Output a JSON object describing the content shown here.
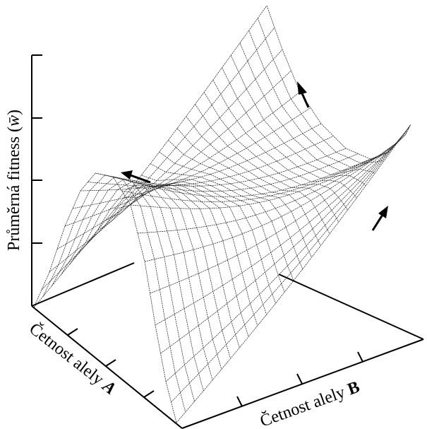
{
  "axes": {
    "y_label": {
      "prefix": "Průměrná fitness (",
      "symbol": "w̄",
      "suffix": ")"
    },
    "a_label": {
      "prefix": "Četnost alely ",
      "letter": "A"
    },
    "b_label": {
      "prefix": "Četnost alely ",
      "letter": "B"
    }
  },
  "surface": {
    "type": "fitness-landscape-mesh"
  },
  "arrows": [
    "arrow-up-ridge",
    "arrow-left-ridge",
    "arrow-right-peak"
  ]
}
